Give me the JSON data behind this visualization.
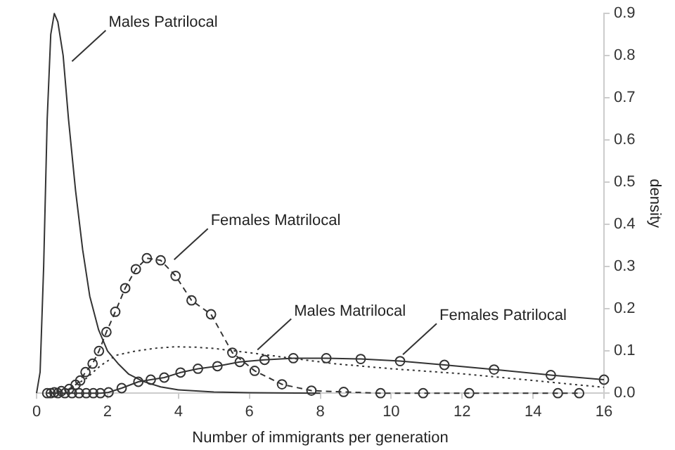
{
  "chart_data": {
    "type": "line",
    "xlabel": "Number of immigrants per generation",
    "ylabel": "density",
    "xlim": [
      0,
      16
    ],
    "xticks": [
      0,
      2,
      4,
      6,
      8,
      10,
      12,
      14,
      16
    ],
    "ylim": [
      0,
      0.9
    ],
    "yticks": [
      {
        "value": 0,
        "label": "0.0"
      },
      0.1,
      0.2,
      0.3,
      0.4,
      0.5,
      0.6,
      0.7,
      0.8,
      0.9
    ],
    "grid": false,
    "legend": false,
    "series": [
      {
        "color": "#333333",
        "marker": "none",
        "line_style": "solid",
        "x": [
          0,
          0.1,
          0.2,
          0.3,
          0.4,
          0.5,
          0.6,
          0.75,
          0.9,
          1.1,
          1.3,
          1.5,
          1.75,
          2,
          2.3,
          2.6,
          3,
          3.5,
          4,
          5,
          6,
          8
        ],
        "values": [
          0,
          0.05,
          0.3,
          0.65,
          0.85,
          0.9,
          0.88,
          0.8,
          0.65,
          0.48,
          0.34,
          0.23,
          0.15,
          0.1,
          0.07,
          0.045,
          0.028,
          0.015,
          0.008,
          0.003,
          0.001,
          0
        ]
      },
      {
        "color": "#333333",
        "marker": "circle",
        "line_style": "dashed",
        "x": [
          0.3,
          0.5,
          0.7,
          0.92,
          1.1,
          1.23,
          1.38,
          1.58,
          1.76,
          1.97,
          2.22,
          2.5,
          2.8,
          3.11,
          3.5,
          3.92,
          4.37,
          4.92,
          5.52,
          6.15,
          6.92,
          7.75,
          8.66,
          9.7,
          10.9,
          12.2,
          14.7,
          15.3
        ],
        "values": [
          0,
          0.002,
          0.005,
          0.01,
          0.02,
          0.03,
          0.05,
          0.07,
          0.1,
          0.145,
          0.193,
          0.249,
          0.294,
          0.32,
          0.315,
          0.278,
          0.22,
          0.187,
          0.096,
          0.053,
          0.021,
          0.006,
          0.003,
          0,
          0,
          0,
          0,
          0
        ]
      },
      {
        "color": "#333333",
        "marker": "none",
        "line_style": "dotted",
        "x": [
          1.1,
          1.4,
          1.8,
          2.25,
          2.8,
          3.4,
          3.92,
          4.5,
          5,
          6,
          7,
          8.38,
          10,
          12,
          14,
          16
        ],
        "values": [
          0.02,
          0.035,
          0.065,
          0.09,
          0.1,
          0.107,
          0.11,
          0.109,
          0.106,
          0.096,
          0.085,
          0.07,
          0.058,
          0.046,
          0.03,
          0.014
        ]
      },
      {
        "color": "#333333",
        "marker": "circle",
        "line_style": "solid",
        "x": [
          0.4,
          0.6,
          0.8,
          1,
          1.2,
          1.4,
          1.6,
          1.8,
          2.03,
          2.4,
          2.87,
          3.22,
          3.6,
          4.06,
          4.55,
          5.1,
          5.73,
          6.43,
          7.24,
          8.17,
          9.14,
          10.25,
          11.5,
          12.9,
          14.5,
          16
        ],
        "values": [
          0,
          0,
          0,
          0,
          0,
          0,
          0,
          0,
          0.002,
          0.012,
          0.027,
          0.032,
          0.037,
          0.049,
          0.058,
          0.064,
          0.074,
          0.079,
          0.083,
          0.083,
          0.081,
          0.076,
          0.067,
          0.056,
          0.043,
          0.032
        ]
      }
    ],
    "annotations": [
      {
        "text": "Males Patrilocal",
        "x": 0.92,
        "y": 0.78
      },
      {
        "text": "Females Matrilocal",
        "x": 3.8,
        "y": 0.31
      },
      {
        "text": "Males Matrilocal",
        "x": 6.15,
        "y": 0.096
      },
      {
        "text": "Females Patrilocal",
        "x": 10.25,
        "y": 0.085
      }
    ]
  }
}
